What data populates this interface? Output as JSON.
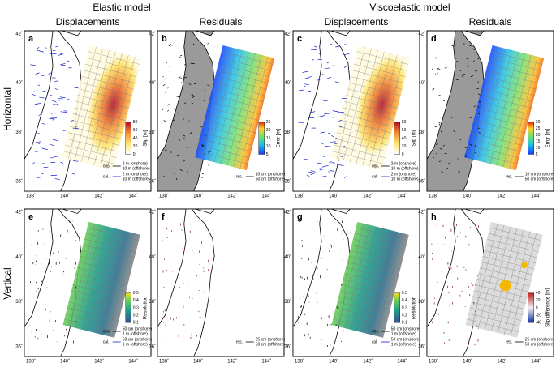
{
  "header": {
    "models": [
      "Elastic model",
      "Viscoelastic model"
    ],
    "columns": [
      "Displacements",
      "Residuals",
      "Displacements",
      "Residuals"
    ],
    "rows": [
      "Horizontal",
      "Vertical"
    ]
  },
  "lon_labels": [
    "138˚",
    "140˚",
    "142˚",
    "144˚"
  ],
  "lat_labels": [
    "36˚",
    "38˚",
    "40˚",
    "42˚"
  ],
  "panels": [
    {
      "letter": "a",
      "cbar_ticks": [
        "0",
        "20",
        "40",
        "60",
        "80"
      ],
      "cbar_label": "Slip [m]",
      "legend": [
        "obs.",
        "2 m (onshore)",
        "10 m (offshore)",
        "cal.",
        "2 m (onshore)",
        "10 m (offshore)"
      ]
    },
    {
      "letter": "b",
      "cbar_ticks": [
        "5",
        "10",
        "15",
        "20",
        "25"
      ],
      "cbar_label": "Error [m]",
      "legend": [
        "res.",
        "10 cm (onshore)",
        "50 cm (offshore)"
      ]
    },
    {
      "letter": "c",
      "cbar_ticks": [
        "0",
        "20",
        "40",
        "60",
        "80"
      ],
      "cbar_label": "Slip [m]",
      "legend": [
        "obs.",
        "2 m (onshore)",
        "10 m (offshore)",
        "cal.",
        "2 m (onshore)",
        "10 m (offshore)"
      ]
    },
    {
      "letter": "d",
      "cbar_ticks": [
        "5",
        "10",
        "15",
        "20",
        "25",
        "30"
      ],
      "cbar_label": "Error [m]",
      "legend": [
        "res.",
        "10 cm (onshore)",
        "50 cm (offshore)"
      ]
    },
    {
      "letter": "e",
      "cbar_ticks": [
        "0.1",
        "0.2",
        "0.3",
        "0.4",
        "0.5"
      ],
      "cbar_label": "Resolution",
      "legend": [
        "obs.",
        "50 cm (onshore)",
        "1 m (offshore)",
        "cal.",
        "50 cm (onshore)",
        "1 m (offshore)"
      ]
    },
    {
      "letter": "f",
      "cbar_ticks": [],
      "cbar_label": "",
      "legend": [
        "res.",
        "25 cm (onshore)",
        "50 cm (offshore)"
      ]
    },
    {
      "letter": "g",
      "cbar_ticks": [
        "0.1",
        "0.2",
        "0.3",
        "0.4",
        "0.5"
      ],
      "cbar_label": "Resolution",
      "legend": [
        "obs.",
        "50 cm (onshore)",
        "1 m (offshore)",
        "cal.",
        "50 cm (onshore)",
        "1 m (offshore)"
      ]
    },
    {
      "letter": "h",
      "cbar_ticks": [
        "-40",
        "-20",
        "0",
        "20",
        "40"
      ],
      "cbar_label": "Slip difference [m]",
      "legend": [
        "res.",
        "25 cm (onshore)",
        "50 cm (offshore)"
      ]
    }
  ]
}
